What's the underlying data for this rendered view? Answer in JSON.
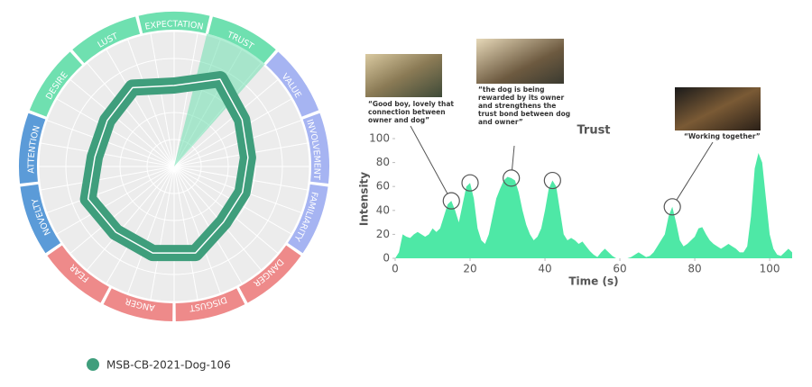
{
  "chart_data": [
    {
      "type": "radar",
      "categories": [
        "EXPECTATION",
        "TRUST",
        "VALUE",
        "INVOLVEMENT",
        "FAMILIARITY",
        "DANGER",
        "DISGUST",
        "ANGER",
        "FEAR",
        "NOVELTY",
        "ATTENTION",
        "DESIRE",
        "LUST"
      ],
      "category_colors": [
        "#6fe0b0",
        "#6fe0b0",
        "#a6b4f2",
        "#a6b4f2",
        "#a6b4f2",
        "#ee8a8a",
        "#ee8a8a",
        "#ee8a8a",
        "#ee8a8a",
        "#5b9bd8",
        "#5b9bd8",
        "#6fe0b0",
        "#6fe0b0"
      ],
      "highlight_index": 1,
      "rlim": [
        0,
        100
      ],
      "series": [
        {
          "name": "MSB-CB-2021-Dog-106",
          "color": "#3f9e7c",
          "values": [
            60,
            73,
            61,
            55,
            54,
            55,
            66,
            66,
            65,
            68,
            59,
            60,
            66
          ]
        }
      ]
    },
    {
      "type": "area",
      "title": "Trust",
      "xlabel": "Time (s)",
      "ylabel": "Intensity",
      "color": "#4ee8a6",
      "xlim": [
        0,
        106
      ],
      "ylim": [
        0,
        100
      ],
      "xticks": [
        0,
        20,
        40,
        60,
        80,
        100
      ],
      "yticks": [
        0,
        20,
        40,
        60,
        80,
        100
      ],
      "x": [
        0,
        1,
        2,
        3,
        4,
        5,
        6,
        7,
        8,
        9,
        10,
        11,
        12,
        13,
        14,
        15,
        16,
        17,
        18,
        19,
        20,
        21,
        22,
        23,
        24,
        25,
        26,
        27,
        28,
        29,
        30,
        31,
        32,
        33,
        34,
        35,
        36,
        37,
        38,
        39,
        40,
        41,
        42,
        43,
        44,
        45,
        46,
        47,
        48,
        49,
        50,
        51,
        52,
        53,
        54,
        55,
        56,
        57,
        58,
        59,
        60,
        61,
        62,
        63,
        64,
        65,
        66,
        67,
        68,
        69,
        70,
        71,
        72,
        73,
        74,
        75,
        76,
        77,
        78,
        79,
        80,
        81,
        82,
        83,
        84,
        85,
        86,
        87,
        88,
        89,
        90,
        91,
        92,
        93,
        94,
        95,
        96,
        97,
        98,
        99,
        100,
        101,
        102,
        103,
        104,
        105,
        106
      ],
      "values": [
        0,
        5,
        20,
        18,
        17,
        20,
        22,
        20,
        18,
        20,
        25,
        22,
        25,
        35,
        45,
        48,
        40,
        30,
        45,
        60,
        63,
        50,
        25,
        15,
        12,
        20,
        35,
        50,
        58,
        65,
        68,
        67,
        65,
        55,
        40,
        28,
        20,
        15,
        18,
        25,
        40,
        58,
        65,
        60,
        40,
        20,
        15,
        17,
        15,
        12,
        14,
        10,
        6,
        3,
        1,
        5,
        8,
        5,
        2,
        0,
        0,
        0,
        0,
        1,
        3,
        5,
        3,
        1,
        2,
        5,
        10,
        15,
        20,
        35,
        43,
        30,
        15,
        10,
        12,
        15,
        18,
        25,
        26,
        20,
        15,
        12,
        10,
        8,
        10,
        12,
        10,
        8,
        5,
        5,
        10,
        35,
        75,
        88,
        80,
        50,
        20,
        8,
        3,
        2,
        5,
        8,
        5
      ],
      "annotations": [
        {
          "x": 15,
          "y": 48,
          "lines": [
            "“Good boy, lovely that",
            "connection between",
            "owner and dog”"
          ]
        },
        {
          "x": 20,
          "y": 63,
          "lines": []
        },
        {
          "x": 31,
          "y": 67,
          "lines": [
            "“the dog is being",
            "rewarded by its owner",
            "and strengthens the",
            "trust bond between dog",
            "and owner”"
          ]
        },
        {
          "x": 42,
          "y": 65,
          "lines": []
        },
        {
          "x": 74,
          "y": 43,
          "lines": [
            "“Working together”"
          ]
        }
      ]
    }
  ]
}
